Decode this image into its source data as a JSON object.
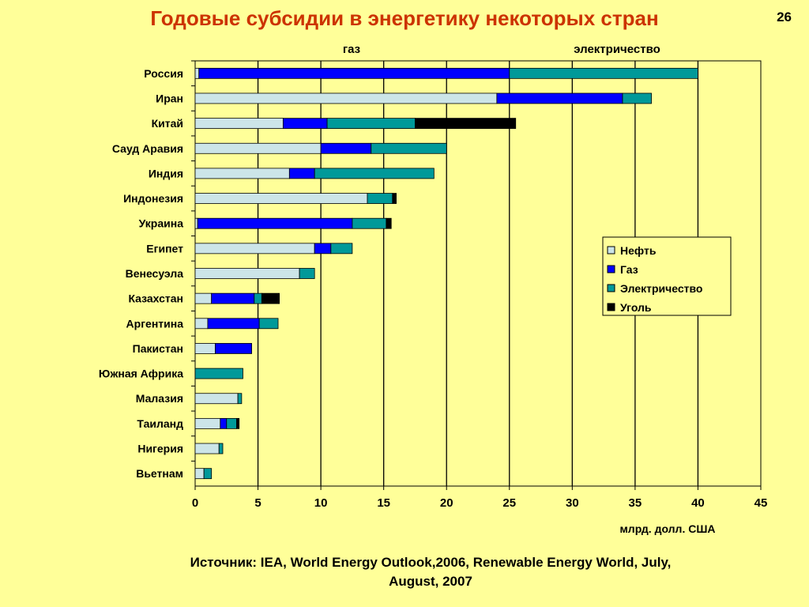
{
  "slide": {
    "title": "Годовые субсидии в энергетику некоторых стран",
    "page_number": "26",
    "source_line1": "Источник: IEA, World Energy Outlook,2006, Renewable Energy World, July,",
    "source_line2": "August, 2007"
  },
  "chart_data": {
    "type": "bar",
    "orientation": "horizontal",
    "stacked": true,
    "categories": [
      "Россия",
      "Иран",
      "Китай",
      "Сауд Аравия",
      "Индия",
      "Индонезия",
      "Украина",
      "Египет",
      "Венесуэла",
      "Казахстан",
      "Аргентина",
      "Пакистан",
      "Южная Африка",
      "Малазия",
      "Таиланд",
      "Нигерия",
      "Вьетнам"
    ],
    "series": [
      {
        "name": "Нефть",
        "color": "#cce5e8",
        "values": [
          0.3,
          24,
          7,
          10,
          7.5,
          13.7,
          0.2,
          9.5,
          8.3,
          1.3,
          1.0,
          1.6,
          0,
          3.4,
          2.0,
          1.9,
          0.7
        ]
      },
      {
        "name": "Газ",
        "color": "#0000ff",
        "values": [
          24.7,
          10,
          3.5,
          4,
          2,
          0,
          12.3,
          1.3,
          0,
          3.4,
          4.1,
          2.9,
          0,
          0,
          0.5,
          0,
          0
        ]
      },
      {
        "name": "Электричество",
        "color": "#009999",
        "values": [
          15,
          2.3,
          7,
          6,
          9.5,
          2,
          2.7,
          1.7,
          1.2,
          0.6,
          1.5,
          0,
          3.8,
          0.3,
          0.8,
          0.3,
          0.6
        ]
      },
      {
        "name": "Уголь",
        "color": "#000000",
        "values": [
          0,
          0,
          8,
          0,
          0,
          0.3,
          0.4,
          0,
          0,
          1.4,
          0,
          0,
          0,
          0,
          0.2,
          0,
          0
        ]
      }
    ],
    "xlim": [
      0,
      45
    ],
    "xticks": [
      0,
      5,
      10,
      15,
      20,
      25,
      30,
      35,
      40,
      45
    ],
    "xlabel": "млрд. долл. США",
    "annotations": [
      "газ",
      "электричество"
    ],
    "grid": "vertical",
    "legend_position": "right"
  }
}
